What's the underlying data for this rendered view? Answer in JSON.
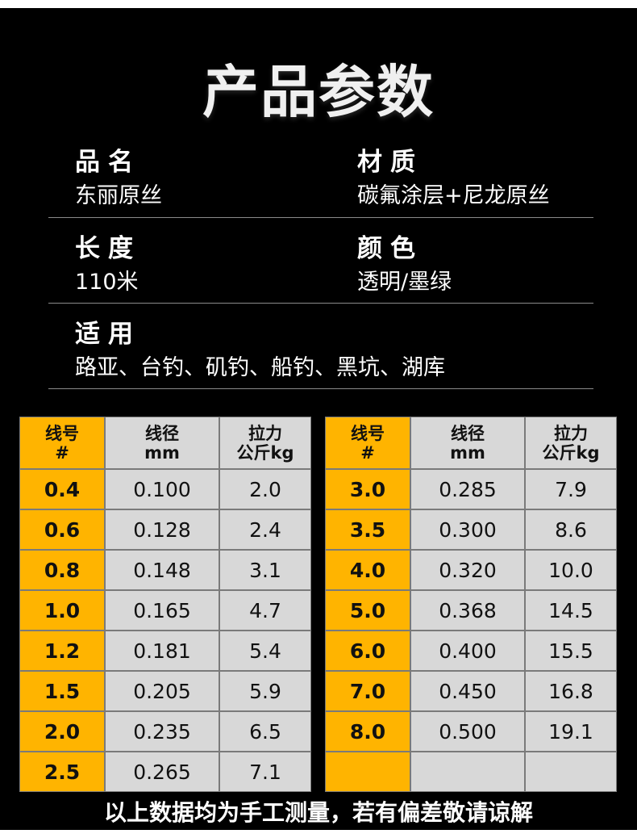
{
  "title": "产品参数",
  "specs": {
    "name": {
      "label": "品名",
      "value": "东丽原丝"
    },
    "material": {
      "label": "材质",
      "value": "碳氟涂层+尼龙原丝"
    },
    "length": {
      "label": "长度",
      "value": "110米"
    },
    "color": {
      "label": "颜色",
      "value": "透明/墨绿"
    },
    "usage": {
      "label": "适用",
      "value": "路亚、台钓、矶钓、船钓、黑坑、湖库"
    }
  },
  "table_left": {
    "headers": {
      "num_line1": "线号",
      "num_line2": "#",
      "dia_line1": "线径",
      "dia_line2": "mm",
      "pull_line1": "拉力",
      "pull_line2": "公斤kg"
    },
    "rows": [
      {
        "num": "0.4",
        "dia": "0.100",
        "pull": "2.0"
      },
      {
        "num": "0.6",
        "dia": "0.128",
        "pull": "2.4"
      },
      {
        "num": "0.8",
        "dia": "0.148",
        "pull": "3.1"
      },
      {
        "num": "1.0",
        "dia": "0.165",
        "pull": "4.7"
      },
      {
        "num": "1.2",
        "dia": "0.181",
        "pull": "5.4"
      },
      {
        "num": "1.5",
        "dia": "0.205",
        "pull": "5.9"
      },
      {
        "num": "2.0",
        "dia": "0.235",
        "pull": "6.5"
      },
      {
        "num": "2.5",
        "dia": "0.265",
        "pull": "7.1"
      }
    ]
  },
  "table_right": {
    "headers": {
      "num_line1": "线号",
      "num_line2": "#",
      "dia_line1": "线径",
      "dia_line2": "mm",
      "pull_line1": "拉力",
      "pull_line2": "公斤kg"
    },
    "rows": [
      {
        "num": "3.0",
        "dia": "0.285",
        "pull": "7.9"
      },
      {
        "num": "3.5",
        "dia": "0.300",
        "pull": "8.6"
      },
      {
        "num": "4.0",
        "dia": "0.320",
        "pull": "10.0"
      },
      {
        "num": "5.0",
        "dia": "0.368",
        "pull": "14.5"
      },
      {
        "num": "6.0",
        "dia": "0.400",
        "pull": "15.5"
      },
      {
        "num": "7.0",
        "dia": "0.450",
        "pull": "16.8"
      },
      {
        "num": "8.0",
        "dia": "0.500",
        "pull": "19.1"
      },
      {
        "num": "",
        "dia": "",
        "pull": ""
      }
    ]
  },
  "footer": "以上数据均为手工测量，若有偏差敬请谅解",
  "colors": {
    "accent": "#ffb400",
    "cell": "#d8d8d8",
    "background": "#000000"
  }
}
